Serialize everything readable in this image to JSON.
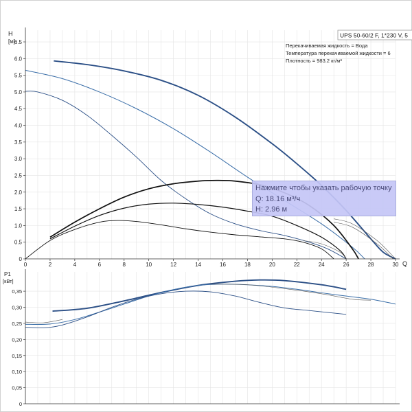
{
  "info": {
    "pump_label": "UPS 50-60/2 F, 1*230 V, 5",
    "lines": [
      "Перекачиваемая жидкость = Вода",
      "Температура перекачиваемой жидкости = 6",
      "Плотность = 983.2 кг/м³"
    ]
  },
  "tooltip": {
    "title": "Нажмите чтобы указать рабочую точку",
    "q": "Q: 18.16 м³/ч",
    "h": "H: 2.96 м"
  },
  "colors": {
    "head_curve": "#2b4f86",
    "thin_blue": "#3a6ea8",
    "black": "#111111",
    "grid": "#e4e4e4",
    "tooltip_bg": "#c4c6f6"
  },
  "chart_data": [
    {
      "type": "line",
      "title": "",
      "ylabel": "H",
      "yunit": "[м]",
      "xlabel": "Q",
      "xlim": [
        0,
        30
      ],
      "ylim": [
        0,
        6.5
      ],
      "x_ticks": [
        "0",
        "2",
        "4",
        "6",
        "8",
        "10",
        "12",
        "14",
        "16",
        "18",
        "20",
        "22",
        "24",
        "26",
        "28",
        "30"
      ],
      "y_ticks": [
        "0",
        "0.5",
        "1.0",
        "1.5",
        "2.0",
        "2.5",
        "3.0",
        "3.5",
        "4.0",
        "4.5",
        "5.0",
        "5.5",
        "6.0",
        "6.5"
      ],
      "grid": true,
      "series": [
        {
          "style": "head_thick",
          "points": [
            [
              2.3,
              5.93
            ],
            [
              5,
              5.82
            ],
            [
              8,
              5.63
            ],
            [
              11,
              5.35
            ],
            [
              14,
              4.9
            ],
            [
              17,
              4.25
            ],
            [
              20,
              3.45
            ],
            [
              22,
              2.85
            ],
            [
              24,
              2.2
            ],
            [
              26,
              1.45
            ],
            [
              28,
              0.6
            ],
            [
              29,
              0.2
            ],
            [
              30,
              0
            ]
          ]
        },
        {
          "style": "head_mid",
          "points": [
            [
              0,
              5.65
            ],
            [
              3,
              5.4
            ],
            [
              6,
              5.0
            ],
            [
              9,
              4.5
            ],
            [
              12,
              3.9
            ],
            [
              15,
              3.2
            ],
            [
              18,
              2.45
            ],
            [
              21,
              1.75
            ],
            [
              24,
              1.05
            ],
            [
              26.5,
              0.35
            ],
            [
              27.5,
              0
            ]
          ]
        },
        {
          "style": "head_low",
          "points": [
            [
              0,
              5.02
            ],
            [
              1,
              5.0
            ],
            [
              3,
              4.75
            ],
            [
              5,
              4.3
            ],
            [
              7,
              3.7
            ],
            [
              9,
              3.05
            ],
            [
              11,
              2.35
            ],
            [
              13,
              1.8
            ],
            [
              15,
              1.35
            ],
            [
              17,
              1.05
            ],
            [
              19,
              0.85
            ],
            [
              21,
              0.7
            ],
            [
              23,
              0.5
            ],
            [
              24.5,
              0.3
            ],
            [
              26,
              0
            ]
          ]
        },
        {
          "style": "eff_high",
          "points": [
            [
              2,
              0.65
            ],
            [
              4,
              1.1
            ],
            [
              6,
              1.5
            ],
            [
              8,
              1.85
            ],
            [
              10,
              2.1
            ],
            [
              12,
              2.25
            ],
            [
              14,
              2.33
            ],
            [
              15.5,
              2.35
            ],
            [
              17,
              2.33
            ],
            [
              19,
              2.22
            ],
            [
              21,
              1.98
            ],
            [
              23,
              1.6
            ],
            [
              25,
              1.0
            ],
            [
              26.5,
              0.3
            ],
            [
              27,
              0
            ]
          ]
        },
        {
          "style": "eff_mid",
          "points": [
            [
              2,
              0.6
            ],
            [
              4,
              0.98
            ],
            [
              6,
              1.3
            ],
            [
              8,
              1.52
            ],
            [
              10,
              1.64
            ],
            [
              12,
              1.67
            ],
            [
              14,
              1.63
            ],
            [
              16,
              1.55
            ],
            [
              18,
              1.43
            ],
            [
              20,
              1.28
            ],
            [
              22,
              1.0
            ],
            [
              24,
              0.65
            ],
            [
              25.5,
              0.25
            ],
            [
              26,
              0
            ]
          ]
        },
        {
          "style": "eff_low",
          "points": [
            [
              0,
              0
            ],
            [
              2,
              0.55
            ],
            [
              4,
              0.88
            ],
            [
              6,
              1.1
            ],
            [
              7.5,
              1.15
            ],
            [
              9,
              1.12
            ],
            [
              11,
              1.02
            ],
            [
              13,
              0.9
            ],
            [
              15,
              0.8
            ],
            [
              17,
              0.72
            ],
            [
              19,
              0.66
            ],
            [
              21,
              0.6
            ],
            [
              22.5,
              0.5
            ],
            [
              24,
              0.3
            ],
            [
              25,
              0
            ]
          ]
        },
        {
          "style": "thin_ext",
          "points": [
            [
              22.5,
              0.55
            ],
            [
              24,
              0.45
            ],
            [
              25.5,
              0.2
            ],
            [
              26,
              0
            ]
          ]
        },
        {
          "style": "thin_ext",
          "points": [
            [
              25,
              1.2
            ],
            [
              26.5,
              1.05
            ],
            [
              28.5,
              0.55
            ],
            [
              30,
              0
            ]
          ]
        },
        {
          "style": "thin_ext",
          "points": [
            [
              25,
              1.1
            ],
            [
              26.5,
              0.95
            ],
            [
              28.5,
              0.45
            ],
            [
              29.8,
              0
            ]
          ]
        }
      ]
    },
    {
      "type": "line",
      "title": "",
      "ylabel": "P1",
      "yunit": "[кВт]",
      "xlim": [
        0,
        30
      ],
      "ylim": [
        0,
        0.4
      ],
      "y_ticks": [
        "0",
        "0,05",
        "0,10",
        "0,15",
        "0,20",
        "0,25",
        "0,30",
        "0,35"
      ],
      "grid": true,
      "series": [
        {
          "style": "head_thick",
          "points": [
            [
              2.2,
              0.288
            ],
            [
              5,
              0.297
            ],
            [
              8,
              0.32
            ],
            [
              11,
              0.346
            ],
            [
              14,
              0.368
            ],
            [
              17,
              0.381
            ],
            [
              19,
              0.385
            ],
            [
              21,
              0.383
            ],
            [
              24,
              0.37
            ],
            [
              26,
              0.356
            ]
          ]
        },
        {
          "style": "head_mid",
          "points": [
            [
              0,
              0.247
            ],
            [
              2,
              0.248
            ],
            [
              4,
              0.262
            ],
            [
              6,
              0.285
            ],
            [
              8,
              0.31
            ],
            [
              10,
              0.335
            ],
            [
              12,
              0.355
            ],
            [
              14,
              0.368
            ],
            [
              16,
              0.372
            ],
            [
              18,
              0.37
            ],
            [
              20,
              0.365
            ],
            [
              22,
              0.356
            ],
            [
              24,
              0.345
            ],
            [
              26,
              0.335
            ],
            [
              28,
              0.325
            ],
            [
              30,
              0.31
            ]
          ]
        },
        {
          "style": "head_low",
          "points": [
            [
              0,
              0.238
            ],
            [
              1.5,
              0.236
            ],
            [
              3,
              0.245
            ],
            [
              5,
              0.27
            ],
            [
              7,
              0.3
            ],
            [
              9,
              0.325
            ],
            [
              11,
              0.342
            ],
            [
              13,
              0.35
            ],
            [
              15,
              0.348
            ],
            [
              17,
              0.335
            ],
            [
              19,
              0.315
            ],
            [
              21,
              0.298
            ],
            [
              23,
              0.29
            ],
            [
              25,
              0.282
            ],
            [
              26,
              0.278
            ]
          ]
        },
        {
          "style": "thin_ext",
          "points": [
            [
              15,
              0.372
            ],
            [
              18,
              0.37
            ],
            [
              21,
              0.358
            ],
            [
              24,
              0.342
            ],
            [
              26.5,
              0.325
            ],
            [
              28,
              0.322
            ]
          ]
        },
        {
          "style": "thin_ext",
          "points": [
            [
              0,
              0.254
            ],
            [
              1.5,
              0.252
            ],
            [
              3,
              0.262
            ]
          ]
        }
      ]
    }
  ]
}
